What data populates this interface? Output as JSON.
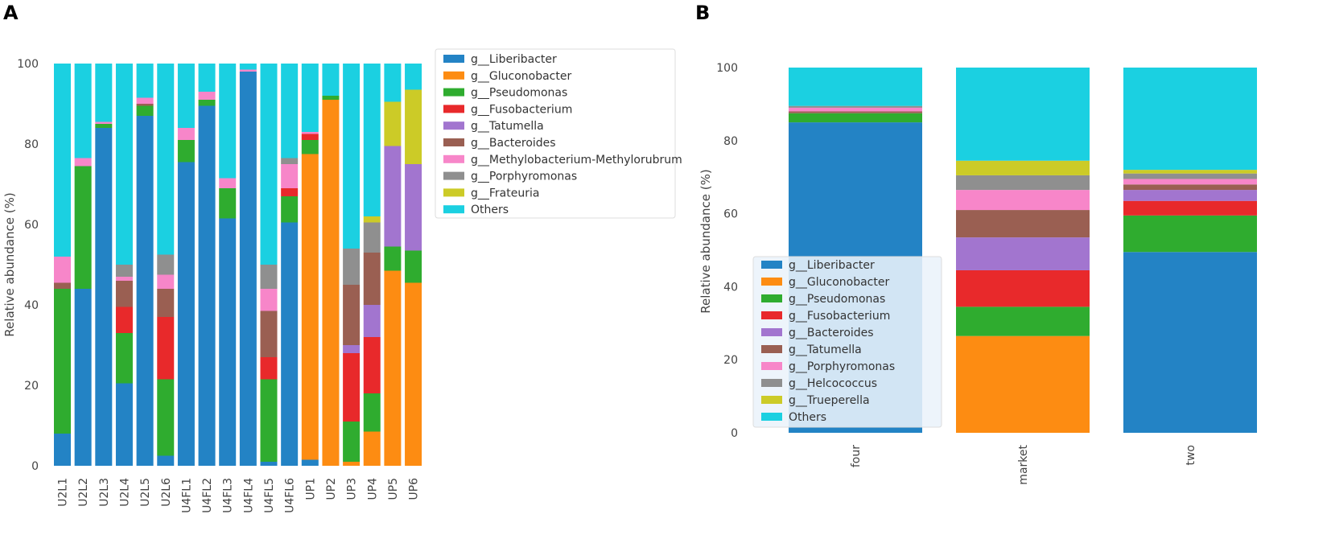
{
  "panels": {
    "a": "A",
    "b": "B"
  },
  "chart_data": [
    {
      "type": "bar",
      "stacked": true,
      "title": "",
      "ylabel": "Relative abundance (%)",
      "xlabel": "",
      "ylim": [
        0,
        100
      ],
      "yticks": [
        "0",
        "20",
        "40",
        "60",
        "80",
        "100"
      ],
      "legend_position": "top-right-outside",
      "categories": [
        "U2L1",
        "U2L2",
        "U2L3",
        "U2L4",
        "U2L5",
        "U2L6",
        "U4FL1",
        "U4FL2",
        "U4FL3",
        "U4FL4",
        "U4FL5",
        "U4FL6",
        "UP1",
        "UP2",
        "UP3",
        "UP4",
        "UP5",
        "UP6"
      ],
      "series": [
        {
          "name": "g__Liberibacter",
          "color": "#2383c5",
          "values": [
            8,
            44,
            84,
            20.5,
            87,
            2.5,
            75.5,
            89.5,
            61.5,
            98,
            1,
            60.5,
            1.5,
            0,
            0,
            0,
            0,
            0
          ]
        },
        {
          "name": "g__Gluconobacter",
          "color": "#fd8c12",
          "values": [
            0,
            0,
            0,
            0,
            0,
            0,
            0,
            0,
            0,
            0,
            0,
            0,
            76,
            91,
            1,
            8.5,
            48.5,
            45.5
          ]
        },
        {
          "name": "g__Pseudomonas",
          "color": "#2fac2f",
          "values": [
            36,
            30.5,
            1,
            12.5,
            2.5,
            19,
            5.5,
            1.5,
            7.5,
            0,
            20.5,
            6.5,
            3.5,
            1,
            10,
            9.5,
            6,
            8
          ]
        },
        {
          "name": "g__Fusobacterium",
          "color": "#e8292b",
          "values": [
            0,
            0,
            0,
            6.5,
            0,
            15.5,
            0,
            0,
            0,
            0,
            5.5,
            2,
            1.5,
            0,
            17,
            14,
            0,
            0
          ]
        },
        {
          "name": "g__Tatumella",
          "color": "#a275cf",
          "values": [
            0,
            0,
            0,
            0,
            0,
            0,
            0,
            0,
            0,
            0,
            0,
            0,
            0,
            0,
            2,
            8,
            25,
            21.5
          ]
        },
        {
          "name": "g__Bacteroides",
          "color": "#9a5f52",
          "values": [
            1.5,
            0,
            0,
            6.5,
            0.5,
            7,
            0,
            0,
            0,
            0,
            11.5,
            0,
            0,
            0,
            15,
            13,
            0,
            0
          ]
        },
        {
          "name": "g__Methylobacterium-Methylorubrum",
          "color": "#f786c9",
          "values": [
            6.5,
            2,
            0.5,
            1,
            1.5,
            3.5,
            3,
            2,
            2.5,
            0.5,
            5.5,
            6,
            0.5,
            0,
            0,
            0,
            0,
            0
          ]
        },
        {
          "name": "g__Porphyromonas",
          "color": "#8f8f8f",
          "values": [
            0,
            0,
            0,
            3,
            0,
            5,
            0,
            0,
            0,
            0,
            6,
            1.5,
            0,
            0,
            9,
            7.5,
            0,
            0
          ]
        },
        {
          "name": "g__Frateuria",
          "color": "#cccb27",
          "values": [
            0,
            0,
            0,
            0,
            0,
            0,
            0,
            0,
            0,
            0,
            0,
            0,
            0,
            0,
            0,
            1.5,
            11,
            18.5
          ]
        },
        {
          "name": "Others",
          "color": "#1bd0e1",
          "values": [
            48,
            23.5,
            14.5,
            50,
            8.5,
            47.5,
            16,
            7,
            28.5,
            1.5,
            50,
            23.5,
            17,
            8,
            46,
            38,
            9.5,
            6.5
          ]
        }
      ]
    },
    {
      "type": "bar",
      "stacked": true,
      "title": "",
      "ylabel": "Relative abundance (%)",
      "xlabel": "",
      "ylim": [
        0,
        100
      ],
      "yticks": [
        "0",
        "20",
        "40",
        "60",
        "80",
        "100"
      ],
      "legend_position": "center-left",
      "categories": [
        "four",
        "market",
        "two"
      ],
      "series": [
        {
          "name": "g__Liberibacter",
          "color": "#2383c5",
          "values": [
            85,
            0,
            49.5
          ]
        },
        {
          "name": "g__Gluconobacter",
          "color": "#fd8c12",
          "values": [
            0,
            26.5,
            0
          ]
        },
        {
          "name": "g__Pseudomonas",
          "color": "#2fac2f",
          "values": [
            2.5,
            8,
            10
          ]
        },
        {
          "name": "g__Fusobacterium",
          "color": "#e8292b",
          "values": [
            0,
            10,
            4
          ]
        },
        {
          "name": "g__Bacteroides",
          "color": "#a275cf",
          "values": [
            0,
            9,
            3
          ]
        },
        {
          "name": "g__Tatumella",
          "color": "#9a5f52",
          "values": [
            0.5,
            7.5,
            1.5
          ]
        },
        {
          "name": "g__Porphyromonas",
          "color": "#f786c9",
          "values": [
            1,
            5.5,
            1.5
          ]
        },
        {
          "name": "g__Helcococcus",
          "color": "#8f8f8f",
          "values": [
            0.5,
            4,
            1.5
          ]
        },
        {
          "name": "g__Trueperella",
          "color": "#cccb27",
          "values": [
            0,
            4,
            1
          ]
        },
        {
          "name": "Others",
          "color": "#1bd0e1",
          "values": [
            10.5,
            25.5,
            28
          ]
        }
      ]
    }
  ]
}
